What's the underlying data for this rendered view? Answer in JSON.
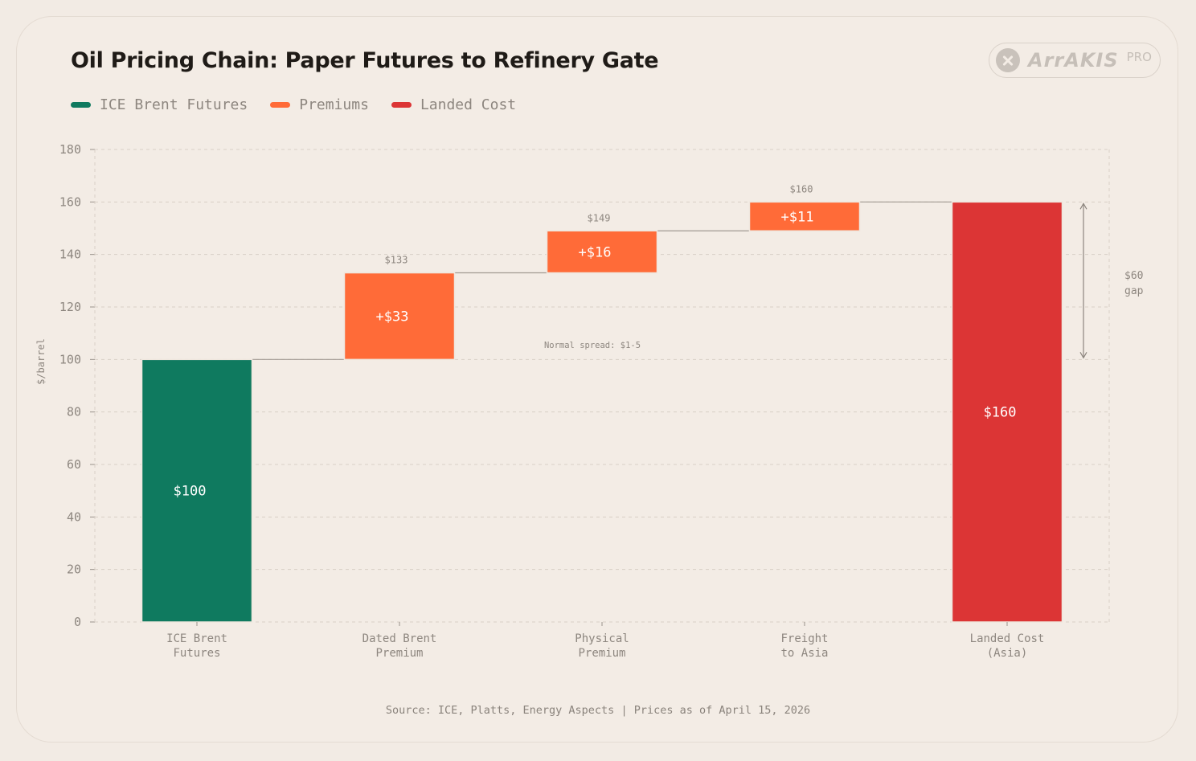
{
  "title": "Oil Pricing Chain: Paper Futures to Refinery Gate",
  "brand": {
    "icon": "arrakis-x-icon",
    "name": "ArrAKIS",
    "tier": "PRO"
  },
  "legend": [
    {
      "label": "ICE Brent Futures",
      "color": "#0f7a5f"
    },
    {
      "label": "Premiums",
      "color": "#ff6b38"
    },
    {
      "label": "Landed Cost",
      "color": "#dc3535"
    }
  ],
  "source": "Source: ICE, Platts, Energy Aspects | Prices as of April 15, 2026",
  "chart_data": {
    "type": "bar",
    "subtype": "waterfall",
    "ylabel": "$/barrel",
    "ylim": [
      0,
      180
    ],
    "yticks": [
      0,
      20,
      40,
      60,
      80,
      100,
      120,
      140,
      160,
      180
    ],
    "grid": true,
    "categories": [
      [
        "ICE Brent",
        "Futures"
      ],
      [
        "Dated Brent",
        "Premium"
      ],
      [
        "Physical",
        "Premium"
      ],
      [
        "Freight",
        "to Asia"
      ],
      [
        "Landed Cost",
        "(Asia)"
      ]
    ],
    "bars": [
      {
        "base": 0,
        "value": 100,
        "kind": "total",
        "color": "#0f7a5f",
        "inner_label": "$100",
        "top_label": ""
      },
      {
        "base": 100,
        "value": 33,
        "kind": "delta",
        "color": "#ff6b38",
        "inner_label": "+$33",
        "top_label": "$133"
      },
      {
        "base": 133,
        "value": 16,
        "kind": "delta",
        "color": "#ff6b38",
        "inner_label": "+$16",
        "top_label": "$149"
      },
      {
        "base": 149,
        "value": 11,
        "kind": "delta",
        "color": "#ff6b38",
        "inner_label": "+$11",
        "top_label": "$160"
      },
      {
        "base": 0,
        "value": 160,
        "kind": "total",
        "color": "#dc3535",
        "inner_label": "$160",
        "top_label": ""
      }
    ],
    "annotations": {
      "normal_spread": "Normal spread: $1-5",
      "gap": {
        "from": 100,
        "to": 160,
        "label_line1": "$60",
        "label_line2": "gap"
      }
    }
  }
}
